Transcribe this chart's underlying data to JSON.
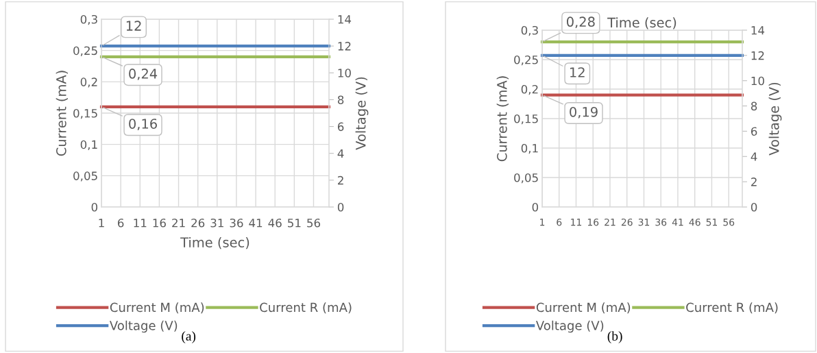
{
  "chart_data": [
    {
      "type": "line",
      "xlabel": "Time (sec)",
      "ylabel": "Current (mA)",
      "y2label": "Voltage (V)",
      "categories": [
        "1",
        null,
        null,
        null,
        null,
        "6",
        null,
        null,
        null,
        null,
        "11",
        null,
        null,
        null,
        null,
        "16",
        null,
        null,
        null,
        null,
        "21",
        null,
        null,
        null,
        null,
        "26",
        null,
        null,
        null,
        null,
        "31",
        null,
        null,
        null,
        null,
        "36",
        null,
        null,
        null,
        null,
        "41",
        null,
        null,
        null,
        null,
        "46",
        null,
        null,
        null,
        null,
        "51",
        null,
        null,
        null,
        null,
        "56",
        null,
        null,
        null,
        null
      ],
      "ylim": [
        0,
        0.3
      ],
      "yticks": [
        {
          "value": 0,
          "label": "0"
        },
        {
          "value": 0.05,
          "label": "0,05"
        },
        {
          "value": 0.1,
          "label": "0,1"
        },
        {
          "value": 0.15,
          "label": "0,15"
        },
        {
          "value": 0.2,
          "label": "0,2"
        },
        {
          "value": 0.25,
          "label": "0,25"
        },
        {
          "value": 0.3,
          "label": "0,3"
        }
      ],
      "y2lim": [
        0,
        14
      ],
      "y2ticks": [
        0,
        2,
        4,
        6,
        8,
        10,
        12,
        14
      ],
      "grid": true,
      "legend": "bottom",
      "marker": "none",
      "series": [
        {
          "name": "Current M (mA)",
          "color": "#c0504d",
          "values": [
            0.16,
            0.16,
            0.16,
            0.16,
            0.16,
            0.16,
            0.16,
            0.16,
            0.16,
            0.16,
            0.16,
            0.16,
            0.16,
            0.16,
            0.16,
            0.16,
            0.16,
            0.16,
            0.16,
            0.16,
            0.16,
            0.16,
            0.16,
            0.16,
            0.16,
            0.16,
            0.16,
            0.16,
            0.16,
            0.16,
            0.16,
            0.16,
            0.16,
            0.16,
            0.16,
            0.16,
            0.16,
            0.16,
            0.16,
            0.16,
            0.16,
            0.16,
            0.16,
            0.16,
            0.16,
            0.16,
            0.16,
            0.16,
            0.16,
            0.16,
            0.16,
            0.16,
            0.16,
            0.16,
            0.16,
            0.16,
            0.16,
            0.16,
            0.16,
            0.16
          ],
          "value_labels": [
            "0,16",
            null,
            null,
            null,
            null,
            null,
            null,
            null,
            null,
            null,
            null,
            null,
            null,
            null,
            null,
            null,
            null,
            null,
            null,
            null,
            null,
            null,
            null,
            null,
            null,
            null,
            null,
            null,
            null,
            null,
            null,
            null,
            null,
            null,
            null,
            null,
            null,
            null,
            null,
            null,
            null,
            null,
            null,
            null,
            null,
            null,
            null,
            null,
            null,
            null,
            null,
            null,
            null,
            null,
            null,
            null,
            null,
            null,
            null,
            null
          ]
        },
        {
          "name": "Current R (mA)",
          "color": "#9bbb59",
          "values": [
            0.24,
            0.24,
            0.24,
            0.24,
            0.24,
            0.24,
            0.24,
            0.24,
            0.24,
            0.24,
            0.24,
            0.24,
            0.24,
            0.24,
            0.24,
            0.24,
            0.24,
            0.24,
            0.24,
            0.24,
            0.24,
            0.24,
            0.24,
            0.24,
            0.24,
            0.24,
            0.24,
            0.24,
            0.24,
            0.24,
            0.24,
            0.24,
            0.24,
            0.24,
            0.24,
            0.24,
            0.24,
            0.24,
            0.24,
            0.24,
            0.24,
            0.24,
            0.24,
            0.24,
            0.24,
            0.24,
            0.24,
            0.24,
            0.24,
            0.24,
            0.24,
            0.24,
            0.24,
            0.24,
            0.24,
            0.24,
            0.24,
            0.24,
            0.24,
            0.24
          ],
          "value_labels": [
            "0,24",
            null,
            null,
            null,
            null,
            null,
            null,
            null,
            null,
            null,
            null,
            null,
            null,
            null,
            null,
            null,
            null,
            null,
            null,
            null,
            null,
            null,
            null,
            null,
            null,
            null,
            null,
            null,
            null,
            null,
            null,
            null,
            null,
            null,
            null,
            null,
            null,
            null,
            null,
            null,
            null,
            null,
            null,
            null,
            null,
            null,
            null,
            null,
            null,
            null,
            null,
            null,
            null,
            null,
            null,
            null,
            null,
            null,
            null,
            null
          ]
        },
        {
          "name": "Voltage (V)",
          "color": "#4f81bd",
          "axis": "y2",
          "values": [
            12,
            12,
            12,
            12,
            12,
            12,
            12,
            12,
            12,
            12,
            12,
            12,
            12,
            12,
            12,
            12,
            12,
            12,
            12,
            12,
            12,
            12,
            12,
            12,
            12,
            12,
            12,
            12,
            12,
            12,
            12,
            12,
            12,
            12,
            12,
            12,
            12,
            12,
            12,
            12,
            12,
            12,
            12,
            12,
            12,
            12,
            12,
            12,
            12,
            12,
            12,
            12,
            12,
            12,
            12,
            12,
            12,
            12,
            12,
            12
          ],
          "value_labels": [
            "12",
            null,
            null,
            null,
            null,
            null,
            null,
            null,
            null,
            null,
            null,
            null,
            null,
            null,
            null,
            null,
            null,
            null,
            null,
            null,
            null,
            null,
            null,
            null,
            null,
            null,
            null,
            null,
            null,
            null,
            null,
            null,
            null,
            null,
            null,
            null,
            null,
            null,
            null,
            null,
            null,
            null,
            null,
            null,
            null,
            null,
            null,
            null,
            null,
            null,
            null,
            null,
            null,
            null,
            null,
            null,
            null,
            null,
            null,
            null
          ]
        }
      ],
      "annotations": [
        "(a)"
      ]
    },
    {
      "type": "line",
      "title": "Time (sec)",
      "ylabel": "Current (mA)",
      "y2label": "Voltage (V)",
      "categories": [
        "1",
        null,
        null,
        null,
        null,
        "6",
        null,
        null,
        null,
        null,
        "11",
        null,
        null,
        null,
        null,
        "16",
        null,
        null,
        null,
        null,
        "21",
        null,
        null,
        null,
        null,
        "26",
        null,
        null,
        null,
        null,
        "31",
        null,
        null,
        null,
        null,
        "36",
        null,
        null,
        null,
        null,
        "41",
        null,
        null,
        null,
        null,
        "46",
        null,
        null,
        null,
        null,
        "51",
        null,
        null,
        null,
        null,
        "56",
        null,
        null,
        null,
        null
      ],
      "ylim": [
        0,
        0.3
      ],
      "yticks": [
        {
          "value": 0,
          "label": "0"
        },
        {
          "value": 0.05,
          "label": "0,05"
        },
        {
          "value": 0.1,
          "label": "0,1"
        },
        {
          "value": 0.15,
          "label": "0,15"
        },
        {
          "value": 0.2,
          "label": "0,2"
        },
        {
          "value": 0.25,
          "label": "0,25"
        },
        {
          "value": 0.3,
          "label": "0,3"
        }
      ],
      "y2lim": [
        0,
        14
      ],
      "y2ticks": [
        0,
        2,
        4,
        6,
        8,
        10,
        12,
        14
      ],
      "grid": true,
      "legend": "bottom",
      "marker": "none",
      "series": [
        {
          "name": "Current M (mA)",
          "color": "#c0504d",
          "values": [
            0.19,
            0.19,
            0.19,
            0.19,
            0.19,
            0.19,
            0.19,
            0.19,
            0.19,
            0.19,
            0.19,
            0.19,
            0.19,
            0.19,
            0.19,
            0.19,
            0.19,
            0.19,
            0.19,
            0.19,
            0.19,
            0.19,
            0.19,
            0.19,
            0.19,
            0.19,
            0.19,
            0.19,
            0.19,
            0.19,
            0.19,
            0.19,
            0.19,
            0.19,
            0.19,
            0.19,
            0.19,
            0.19,
            0.19,
            0.19,
            0.19,
            0.19,
            0.19,
            0.19,
            0.19,
            0.19,
            0.19,
            0.19,
            0.19,
            0.19,
            0.19,
            0.19,
            0.19,
            0.19,
            0.19,
            0.19,
            0.19,
            0.19,
            0.19,
            0.19
          ],
          "value_labels": [
            "0,19",
            null,
            null,
            null,
            null,
            null,
            null,
            null,
            null,
            null,
            null,
            null,
            null,
            null,
            null,
            null,
            null,
            null,
            null,
            null,
            null,
            null,
            null,
            null,
            null,
            null,
            null,
            null,
            null,
            null,
            null,
            null,
            null,
            null,
            null,
            null,
            null,
            null,
            null,
            null,
            null,
            null,
            null,
            null,
            null,
            null,
            null,
            null,
            null,
            null,
            null,
            null,
            null,
            null,
            null,
            null,
            null,
            null,
            null,
            null
          ]
        },
        {
          "name": "Current R (mA)",
          "color": "#9bbb59",
          "values": [
            0.28,
            0.28,
            0.28,
            0.28,
            0.28,
            0.28,
            0.28,
            0.28,
            0.28,
            0.28,
            0.28,
            0.28,
            0.28,
            0.28,
            0.28,
            0.28,
            0.28,
            0.28,
            0.28,
            0.28,
            0.28,
            0.28,
            0.28,
            0.28,
            0.28,
            0.28,
            0.28,
            0.28,
            0.28,
            0.28,
            0.28,
            0.28,
            0.28,
            0.28,
            0.28,
            0.28,
            0.28,
            0.28,
            0.28,
            0.28,
            0.28,
            0.28,
            0.28,
            0.28,
            0.28,
            0.28,
            0.28,
            0.28,
            0.28,
            0.28,
            0.28,
            0.28,
            0.28,
            0.28,
            0.28,
            0.28,
            0.28,
            0.28,
            0.28,
            0.28
          ],
          "value_labels": [
            "0,28",
            null,
            null,
            null,
            null,
            null,
            null,
            null,
            null,
            null,
            null,
            null,
            null,
            null,
            null,
            null,
            null,
            null,
            null,
            null,
            null,
            null,
            null,
            null,
            null,
            null,
            null,
            null,
            null,
            null,
            null,
            null,
            null,
            null,
            null,
            null,
            null,
            null,
            null,
            null,
            null,
            null,
            null,
            null,
            null,
            null,
            null,
            null,
            null,
            null,
            null,
            null,
            null,
            null,
            null,
            null,
            null,
            null,
            null,
            null
          ]
        },
        {
          "name": "Voltage (V)",
          "color": "#4f81bd",
          "axis": "y2",
          "values": [
            12,
            12,
            12,
            12,
            12,
            12,
            12,
            12,
            12,
            12,
            12,
            12,
            12,
            12,
            12,
            12,
            12,
            12,
            12,
            12,
            12,
            12,
            12,
            12,
            12,
            12,
            12,
            12,
            12,
            12,
            12,
            12,
            12,
            12,
            12,
            12,
            12,
            12,
            12,
            12,
            12,
            12,
            12,
            12,
            12,
            12,
            12,
            12,
            12,
            12,
            12,
            12,
            12,
            12,
            12,
            12,
            12,
            12,
            12,
            12
          ],
          "value_labels": [
            "12",
            null,
            null,
            null,
            null,
            null,
            null,
            null,
            null,
            null,
            null,
            null,
            null,
            null,
            null,
            null,
            null,
            null,
            null,
            null,
            null,
            null,
            null,
            null,
            null,
            null,
            null,
            null,
            null,
            null,
            null,
            null,
            null,
            null,
            null,
            null,
            null,
            null,
            null,
            null,
            null,
            null,
            null,
            null,
            null,
            null,
            null,
            null,
            null,
            null,
            null,
            null,
            null,
            null,
            null,
            null,
            null,
            null,
            null,
            null
          ]
        }
      ],
      "annotations": [
        "(b)"
      ]
    }
  ]
}
